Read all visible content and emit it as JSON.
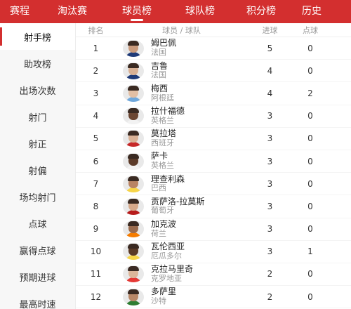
{
  "topnav": {
    "tabs": [
      {
        "label": "赛程",
        "active": false
      },
      {
        "label": "淘汰赛",
        "active": false
      },
      {
        "label": "球员榜",
        "active": true
      },
      {
        "label": "球队榜",
        "active": false
      },
      {
        "label": "积分榜",
        "active": false
      },
      {
        "label": "历史",
        "active": false
      }
    ]
  },
  "sidebar": {
    "items": [
      {
        "label": "射手榜",
        "active": true
      },
      {
        "label": "助攻榜",
        "active": false
      },
      {
        "label": "出场次数",
        "active": false
      },
      {
        "label": "射门",
        "active": false
      },
      {
        "label": "射正",
        "active": false
      },
      {
        "label": "射偏",
        "active": false
      },
      {
        "label": "场均射门",
        "active": false
      },
      {
        "label": "点球",
        "active": false
      },
      {
        "label": "赢得点球",
        "active": false
      },
      {
        "label": "预期进球",
        "active": false
      },
      {
        "label": "最高时速",
        "active": false
      }
    ]
  },
  "table": {
    "headers": {
      "rank": "排名",
      "player": "球员 / 球队",
      "goals": "进球",
      "penalties": "点球"
    },
    "rows": [
      {
        "rank": "1",
        "name": "姆巴佩",
        "team": "法国",
        "goals": "5",
        "penalties": "0",
        "skin": "#c99a7c",
        "shirt": "#1f3a78"
      },
      {
        "rank": "2",
        "name": "吉鲁",
        "team": "法国",
        "goals": "4",
        "penalties": "0",
        "skin": "#d8b094",
        "shirt": "#1f3a78"
      },
      {
        "rank": "3",
        "name": "梅西",
        "team": "阿根廷",
        "goals": "4",
        "penalties": "2",
        "skin": "#e2bfa4",
        "shirt": "#6fa8dc"
      },
      {
        "rank": "4",
        "name": "拉什福德",
        "team": "英格兰",
        "goals": "3",
        "penalties": "0",
        "skin": "#6b4632",
        "shirt": "#f2f2f2"
      },
      {
        "rank": "5",
        "name": "莫拉塔",
        "team": "西班牙",
        "goals": "3",
        "penalties": "0",
        "skin": "#d9b196",
        "shirt": "#c62828"
      },
      {
        "rank": "6",
        "name": "萨卡",
        "team": "英格兰",
        "goals": "3",
        "penalties": "0",
        "skin": "#5b3a28",
        "shirt": "#f2f2f2"
      },
      {
        "rank": "7",
        "name": "理查利森",
        "team": "巴西",
        "goals": "3",
        "penalties": "0",
        "skin": "#b98464",
        "shirt": "#f7d548"
      },
      {
        "rank": "8",
        "name": "贡萨洛-拉莫斯",
        "team": "葡萄牙",
        "goals": "3",
        "penalties": "0",
        "skin": "#d6a98a",
        "shirt": "#b71c1c"
      },
      {
        "rank": "9",
        "name": "加克波",
        "team": "荷兰",
        "goals": "3",
        "penalties": "0",
        "skin": "#9a6b4e",
        "shirt": "#f57c00"
      },
      {
        "rank": "10",
        "name": "瓦伦西亚",
        "team": "厄瓜多尔",
        "goals": "3",
        "penalties": "1",
        "skin": "#5a3926",
        "shirt": "#f7d548"
      },
      {
        "rank": "11",
        "name": "克拉马里奇",
        "team": "克罗地亚",
        "goals": "2",
        "penalties": "0",
        "skin": "#dcb69a",
        "shirt": "#e53935"
      },
      {
        "rank": "12",
        "name": "多萨里",
        "team": "沙特",
        "goals": "2",
        "penalties": "0",
        "skin": "#b98868",
        "shirt": "#2e7d32"
      }
    ]
  }
}
